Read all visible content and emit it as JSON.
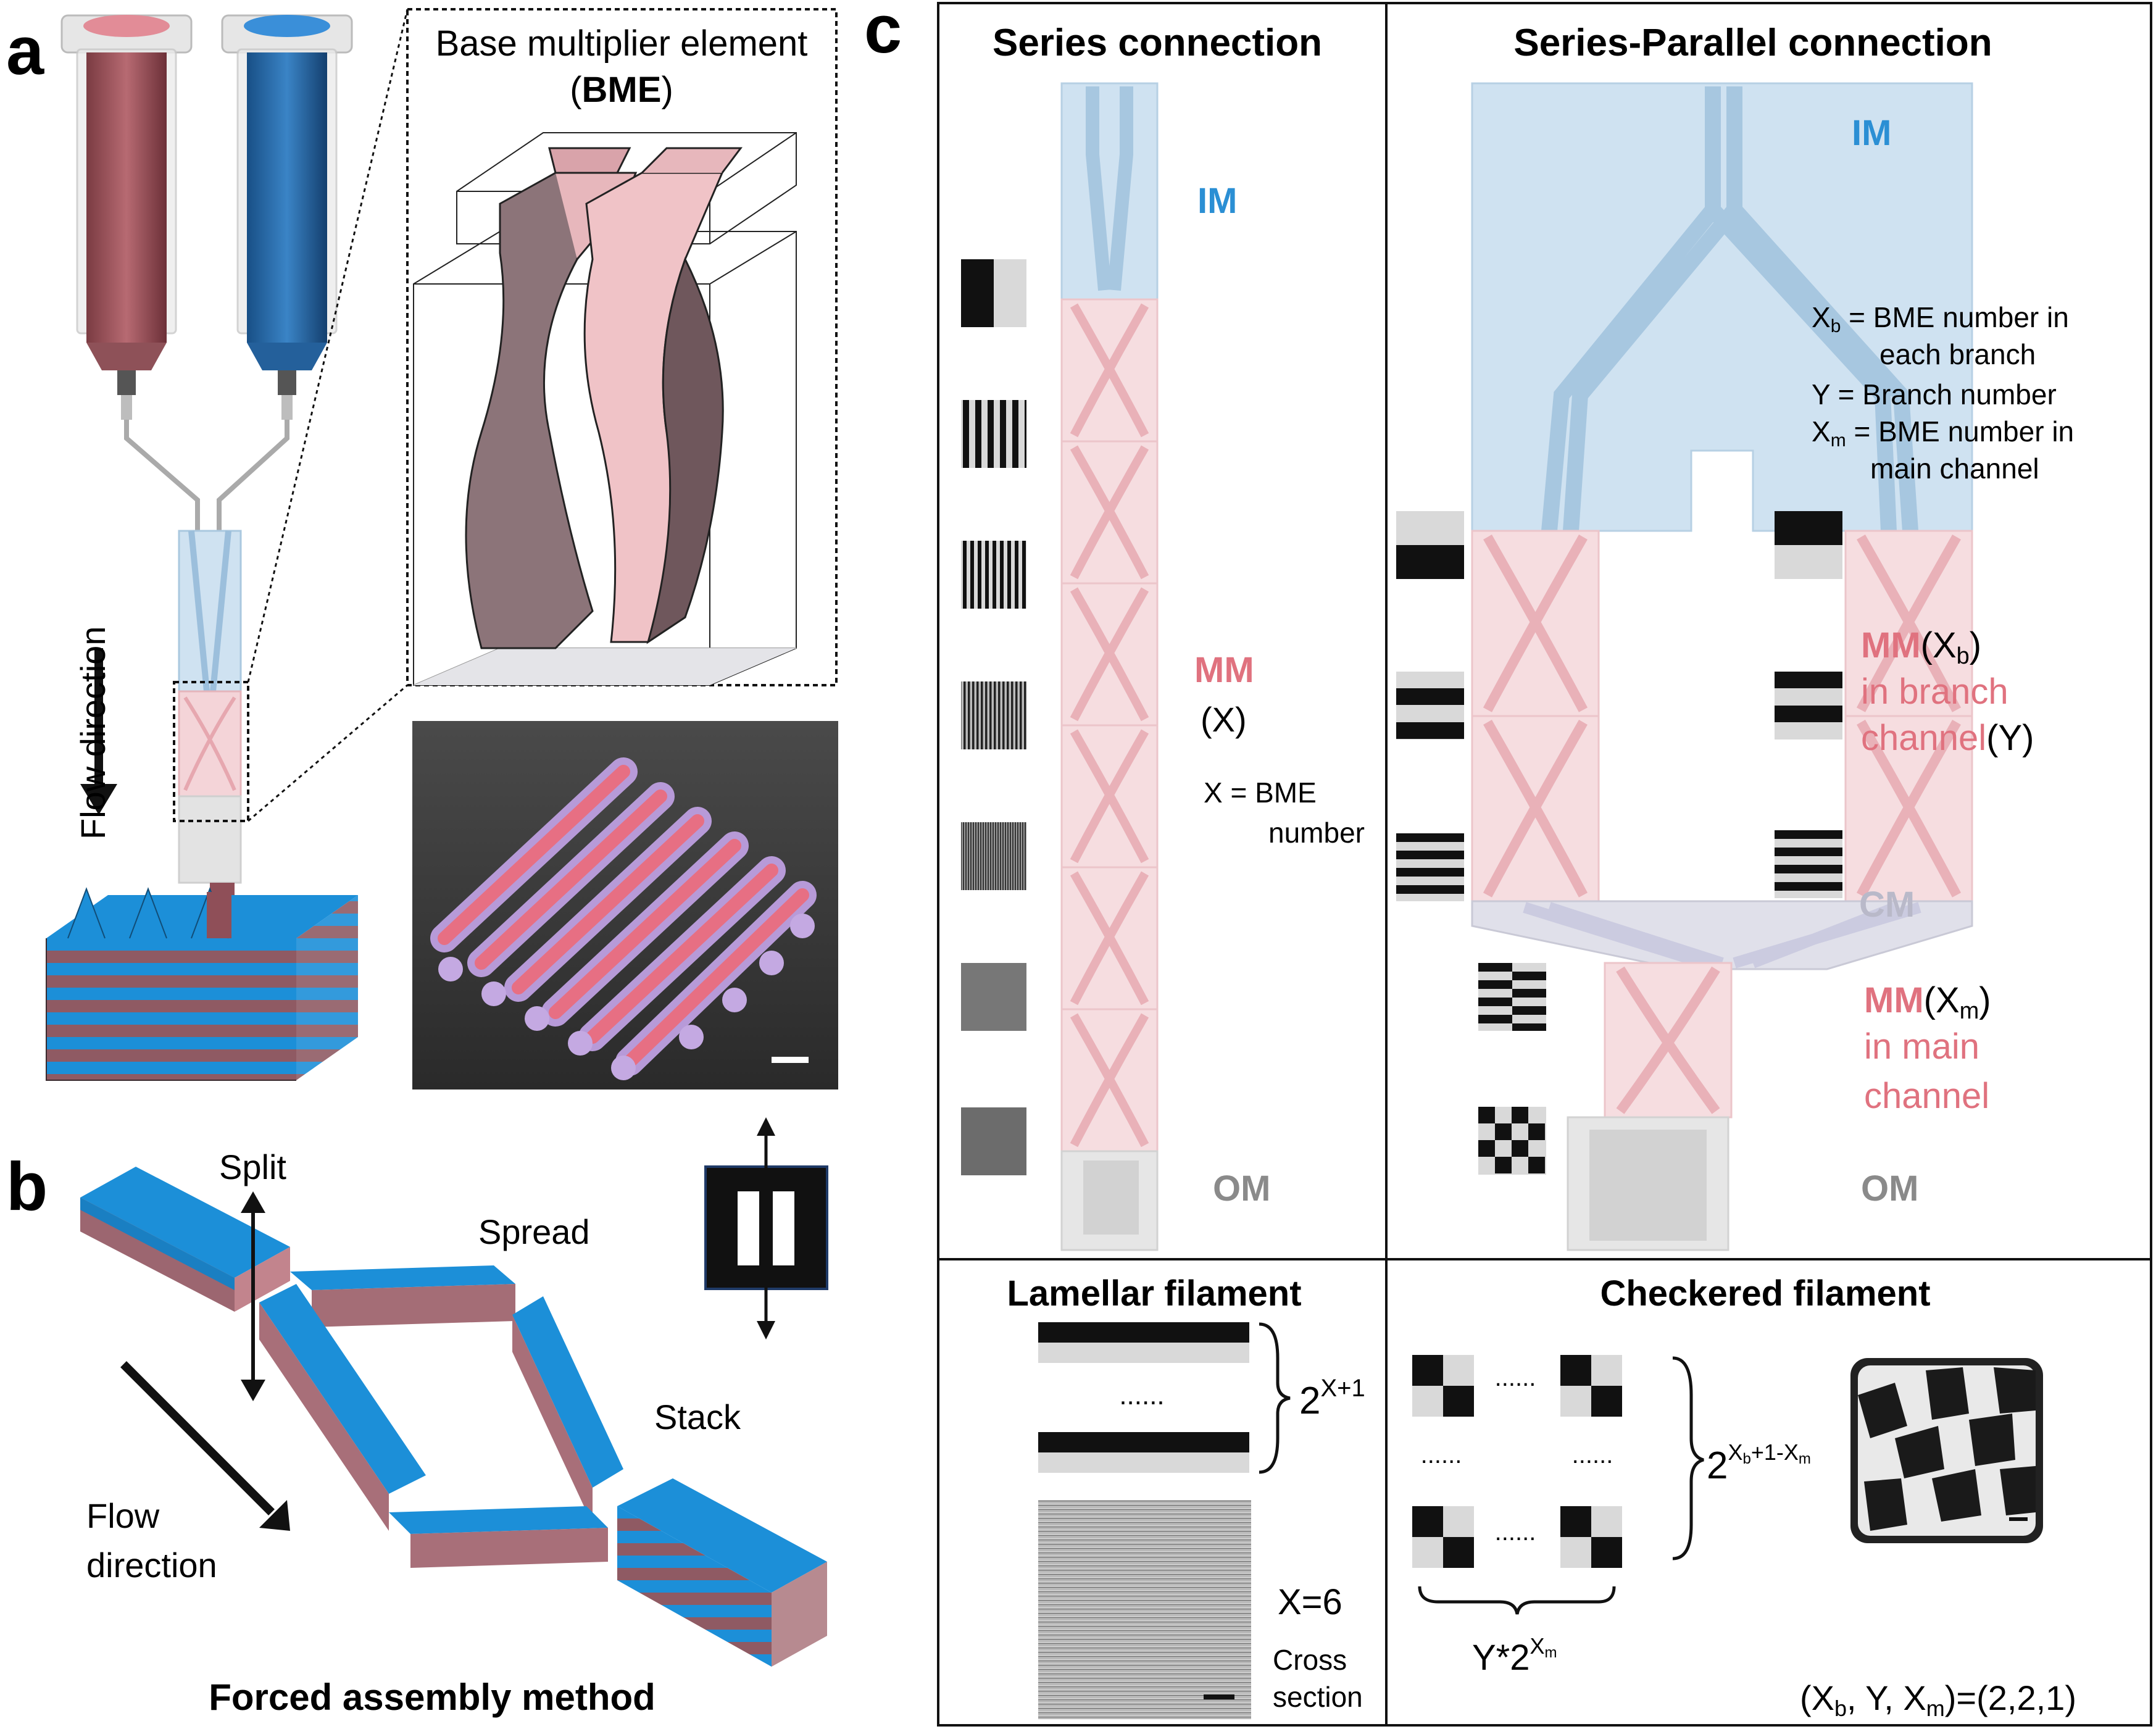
{
  "panel_a": {
    "letter": "a",
    "bme_title": "Base multiplier element",
    "bme_abbr_open": "(",
    "bme_abbr": "BME",
    "bme_abbr_close": ")",
    "flow_label": "Flow direction"
  },
  "panel_b": {
    "letter": "b",
    "split": "Split",
    "spread": "Spread",
    "stack": "Stack",
    "flow_line1": "Flow",
    "flow_line2": "direction",
    "caption": "Forced assembly method"
  },
  "panel_c": {
    "letter": "c",
    "series": {
      "title": "Series connection",
      "im": "IM",
      "mm": "MM",
      "mm_var": "(X)",
      "eq_line1": "X = BME",
      "eq_line2": "number",
      "om": "OM"
    },
    "series_parallel": {
      "title": "Series-Parallel connection",
      "im": "IM",
      "def1_line1_var": "X",
      "def1_line1_sub": "b",
      "def1_line1_rest": " = BME number in",
      "def1_line2": "each branch",
      "def2": "Y = Branch number",
      "def3_line1_var": "X",
      "def3_line1_sub": "m",
      "def3_line1_rest": " = BME number in",
      "def3_line2": "main channel",
      "mm_branch_mm": "MM",
      "mm_branch_var_open": "(X",
      "mm_branch_var_sub": "b",
      "mm_branch_var_close": ")",
      "branch_line2": "in branch",
      "branch_line3": "channel",
      "branch_line3_var": "(Y)",
      "cm": "CM",
      "mm_main_mm": "MM",
      "mm_main_var_open": "(X",
      "mm_main_var_sub": "m",
      "mm_main_var_close": ")",
      "main_line2": "in main",
      "main_line3": "channel",
      "om": "OM"
    },
    "lamellar": {
      "title": "Lamellar filament",
      "dots": "......",
      "exp_base": "2",
      "exp_sup": "X+1",
      "x_value": "X=6",
      "cross_line1": "Cross",
      "cross_line2": "section"
    },
    "checkered": {
      "title": "Checkered filament",
      "dots": "......",
      "exp_base": "2",
      "exp_sup_x": "X",
      "exp_sup_b": "b",
      "exp_sup_mid": "+1-X",
      "exp_sup_m": "m",
      "y_base": "Y*2",
      "y_sup_x": "X",
      "y_sup_m": "m",
      "tuple_open": "(X",
      "tuple_b": "b",
      "tuple_mid": ", Y, X",
      "tuple_m": "m",
      "tuple_close": ")=(2,2,1)"
    }
  },
  "colors": {
    "im_blue": "#2b8fd4",
    "mm_pink": "#e0727f",
    "cm_gray": "#b9b9c9",
    "om_gray": "#8a8a8a",
    "layer_blue": "#1c8fd8",
    "layer_maroon": "#a9757c"
  }
}
